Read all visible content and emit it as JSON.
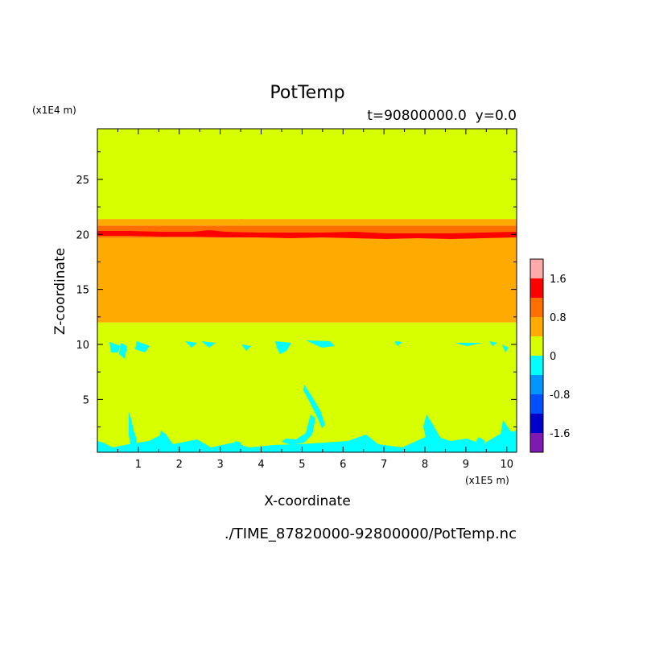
{
  "chart_data": {
    "type": "heatmap",
    "title": "PotTemp",
    "subtitle": "t=90800000.0  y=0.0",
    "xlabel": "X-coordinate",
    "ylabel": "Z-coordinate",
    "x_unit": "(x1E5 m)",
    "y_unit": "(x1E4 m)",
    "footer": "./TIME_87820000-92800000/PotTemp.nc",
    "xlim": [
      0,
      10.24
    ],
    "ylim": [
      0.2,
      29.6
    ],
    "x_ticks": [
      "1",
      "2",
      "3",
      "4",
      "5",
      "6",
      "7",
      "8",
      "9",
      "10"
    ],
    "y_ticks": [
      "5",
      "10",
      "15",
      "20",
      "25"
    ],
    "colorbar": {
      "labels": [
        "1.6",
        "0.8",
        "0",
        "-0.8",
        "-1.6"
      ],
      "levels": [
        {
          "range": [
            -2.0,
            -1.6
          ],
          "color": "#7e19b4"
        },
        {
          "range": [
            -1.6,
            -1.2
          ],
          "color": "#0000c8"
        },
        {
          "range": [
            -1.2,
            -0.8
          ],
          "color": "#0050ff"
        },
        {
          "range": [
            -0.8,
            -0.4
          ],
          "color": "#0096ff"
        },
        {
          "range": [
            -0.4,
            0.0
          ],
          "color": "#00ffff"
        },
        {
          "range": [
            0.0,
            0.4
          ],
          "color": "#d7ff00"
        },
        {
          "range": [
            0.4,
            0.8
          ],
          "color": "#ffaa00"
        },
        {
          "range": [
            0.8,
            1.2
          ],
          "color": "#ff6e00"
        },
        {
          "range": [
            1.2,
            1.6
          ],
          "color": "#ff0000"
        },
        {
          "range": [
            1.6,
            2.0
          ],
          "color": "#ffaaaa"
        }
      ]
    },
    "bands": [
      {
        "z": [
          0.2,
          12.0
        ],
        "value_range": [
          0.0,
          0.4
        ],
        "color": "#d7ff00"
      },
      {
        "z": [
          12.0,
          19.7
        ],
        "value_range": [
          0.4,
          0.8
        ],
        "color": "#ffaa00"
      },
      {
        "z": [
          19.7,
          20.8
        ],
        "value_range": [
          0.8,
          1.6
        ],
        "color": "#ff6e00"
      },
      {
        "z": [
          20.8,
          21.4
        ],
        "value_range": [
          0.4,
          0.8
        ],
        "color": "#ffaa00"
      },
      {
        "z": [
          21.4,
          29.6
        ],
        "value_range": [
          0.0,
          0.4
        ],
        "color": "#d7ff00"
      }
    ],
    "grid": false
  }
}
